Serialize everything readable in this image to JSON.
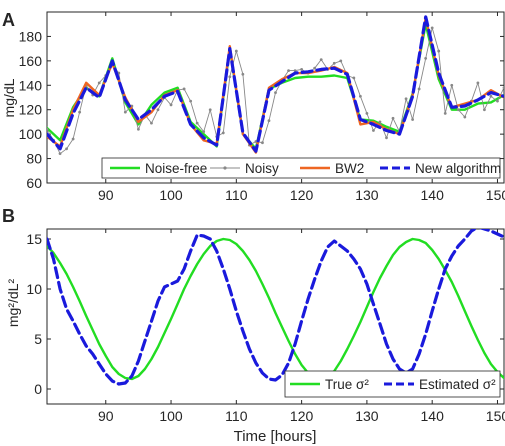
{
  "chart_data": [
    {
      "panel_label": "A",
      "type": "line",
      "title": "",
      "xlabel": "",
      "ylabel": "mg/dL",
      "xlim": [
        81,
        151
      ],
      "ylim": [
        60,
        200
      ],
      "xticks": [
        90,
        100,
        110,
        120,
        130,
        140,
        150
      ],
      "yticks": [
        60,
        80,
        100,
        120,
        140,
        160,
        180
      ],
      "legend_position": "bottom",
      "series": [
        {
          "name": "Noise-free",
          "color": "#22dd22",
          "style": "solid",
          "x": [
            81,
            83,
            85,
            87,
            89,
            91,
            93,
            95,
            97,
            99,
            101,
            103,
            105,
            107,
            109,
            111,
            113,
            115,
            117,
            119,
            121,
            123,
            125,
            127,
            129,
            131,
            133,
            135,
            137,
            139,
            141,
            143,
            145,
            147,
            149,
            151
          ],
          "y": [
            105,
            95,
            122,
            138,
            131,
            162,
            126,
            108,
            124,
            134,
            138,
            110,
            100,
            90,
            170,
            100,
            88,
            137,
            142,
            146,
            147,
            147,
            148,
            146,
            112,
            111,
            106,
            102,
            133,
            190,
            145,
            120,
            120,
            125,
            126,
            132
          ]
        },
        {
          "name": "Noisy",
          "color": "#888888",
          "style": "noisy",
          "x": [
            81,
            82,
            83,
            84,
            85,
            86,
            87,
            88,
            89,
            90,
            91,
            92,
            93,
            94,
            95,
            96,
            97,
            98,
            99,
            100,
            101,
            102,
            103,
            104,
            105,
            106,
            107,
            108,
            109,
            110,
            111,
            112,
            113,
            114,
            115,
            116,
            117,
            118,
            119,
            120,
            121,
            122,
            123,
            124,
            125,
            126,
            127,
            128,
            129,
            130,
            131,
            132,
            133,
            134,
            135,
            136,
            137,
            138,
            139,
            140,
            141,
            142,
            143,
            144,
            145,
            146,
            147,
            148,
            149,
            150,
            151
          ],
          "y": [
            104,
            95,
            84,
            88,
            96,
            118,
            140,
            132,
            142,
            148,
            157,
            150,
            118,
            123,
            104,
            116,
            109,
            120,
            130,
            124,
            136,
            137,
            127,
            109,
            102,
            120,
            98,
            101,
            147,
            168,
            149,
            91,
            94,
            93,
            111,
            134,
            144,
            152,
            152,
            153,
            150,
            154,
            161,
            153,
            158,
            160,
            148,
            146,
            131,
            117,
            103,
            110,
            97,
            113,
            102,
            129,
            112,
            137,
            162,
            187,
            168,
            117,
            140,
            120,
            114,
            127,
            142,
            120,
            131,
            127,
            138
          ]
        },
        {
          "name": "BW2",
          "color": "#ee6622",
          "style": "solid",
          "x": [
            81,
            83,
            85,
            87,
            89,
            91,
            93,
            95,
            97,
            99,
            101,
            103,
            105,
            107,
            109,
            111,
            113,
            115,
            117,
            119,
            121,
            123,
            125,
            127,
            129,
            131,
            133,
            135,
            137,
            139,
            141,
            143,
            145,
            147,
            149,
            151
          ],
          "y": [
            98,
            90,
            120,
            142,
            132,
            158,
            130,
            110,
            118,
            132,
            136,
            108,
            95,
            92,
            172,
            100,
            85,
            138,
            145,
            150,
            150,
            152,
            155,
            150,
            108,
            110,
            104,
            100,
            132,
            195,
            148,
            122,
            125,
            128,
            136,
            130
          ]
        },
        {
          "name": "New algorithm",
          "color": "#1a1adc",
          "style": "dashed",
          "x": [
            81,
            83,
            85,
            87,
            89,
            91,
            93,
            95,
            97,
            99,
            101,
            103,
            105,
            107,
            109,
            111,
            113,
            115,
            117,
            119,
            121,
            123,
            125,
            127,
            129,
            131,
            133,
            135,
            137,
            139,
            141,
            143,
            145,
            147,
            149,
            151
          ],
          "y": [
            100,
            88,
            117,
            138,
            130,
            160,
            128,
            112,
            120,
            131,
            135,
            108,
            97,
            91,
            170,
            101,
            86,
            136,
            143,
            150,
            151,
            153,
            154,
            149,
            112,
            108,
            103,
            100,
            131,
            196,
            150,
            122,
            123,
            128,
            134,
            131
          ]
        }
      ]
    },
    {
      "panel_label": "B",
      "type": "line",
      "title": "",
      "xlabel": "Time [hours]",
      "ylabel": "mg²/dL²",
      "xlim": [
        81,
        151
      ],
      "ylim": [
        -1.5,
        16
      ],
      "xticks": [
        90,
        100,
        110,
        120,
        130,
        140,
        150
      ],
      "yticks": [
        0,
        5,
        10,
        15
      ],
      "legend_position": "bottom-right",
      "series": [
        {
          "name": "True σ²",
          "color": "#22dd22",
          "style": "solid",
          "x": [
            81,
            82,
            83,
            84,
            85,
            86,
            87,
            88,
            89,
            90,
            91,
            92,
            93,
            94,
            95,
            96,
            97,
            98,
            99,
            100,
            101,
            102,
            103,
            104,
            105,
            106,
            107,
            108,
            109,
            110,
            111,
            112,
            113,
            114,
            115,
            116,
            117,
            118,
            119,
            120,
            121,
            122,
            123,
            124,
            125,
            126,
            127,
            128,
            129,
            130,
            131,
            132,
            133,
            134,
            135,
            136,
            137,
            138,
            139,
            140,
            141,
            142,
            143,
            144,
            145,
            146,
            147,
            148,
            149,
            150,
            151
          ],
          "y": [
            14.3,
            13.6,
            12.6,
            11.5,
            10.2,
            8.8,
            7.3,
            5.9,
            4.5,
            3.3,
            2.2,
            1.5,
            1.1,
            1.0,
            1.3,
            2.0,
            3.0,
            4.2,
            5.6,
            7.0,
            8.5,
            10.0,
            11.3,
            12.5,
            13.5,
            14.3,
            14.8,
            15.0,
            14.9,
            14.5,
            13.8,
            12.9,
            11.8,
            10.5,
            9.1,
            7.6,
            6.2,
            4.8,
            3.5,
            2.4,
            1.6,
            1.1,
            1.0,
            1.2,
            1.8,
            2.8,
            4.0,
            5.3,
            6.7,
            8.2,
            9.7,
            11.1,
            12.3,
            13.4,
            14.2,
            14.7,
            15.0,
            14.9,
            14.6,
            13.9,
            13.0,
            11.9,
            10.7,
            9.3,
            7.8,
            6.3,
            4.9,
            3.6,
            2.5,
            1.7,
            1.1
          ]
        },
        {
          "name": "Estimated σ²",
          "color": "#1a1adc",
          "style": "dashed",
          "x": [
            81,
            82,
            83,
            84,
            85,
            86,
            87,
            88,
            89,
            90,
            91,
            92,
            93,
            94,
            95,
            96,
            97,
            98,
            99,
            100,
            101,
            102,
            103,
            104,
            105,
            106,
            107,
            108,
            109,
            110,
            111,
            112,
            113,
            114,
            115,
            116,
            117,
            118,
            119,
            120,
            121,
            122,
            123,
            124,
            125,
            126,
            127,
            128,
            129,
            130,
            131,
            132,
            133,
            134,
            135,
            136,
            137,
            138,
            139,
            140,
            141,
            142,
            143,
            144,
            145,
            146,
            147,
            148,
            149,
            150,
            151
          ],
          "y": [
            15.0,
            13.0,
            10.0,
            8.0,
            6.8,
            5.5,
            4.3,
            3.5,
            2.5,
            1.5,
            0.8,
            0.5,
            0.6,
            1.3,
            2.8,
            4.8,
            6.8,
            8.8,
            10.2,
            10.5,
            10.8,
            12.0,
            13.8,
            15.4,
            15.3,
            15.0,
            13.8,
            12.0,
            10.0,
            7.8,
            5.8,
            4.0,
            2.6,
            1.6,
            1.0,
            0.9,
            1.4,
            2.6,
            4.5,
            6.8,
            9.0,
            11.0,
            12.8,
            14.2,
            14.8,
            14.3,
            13.8,
            13.0,
            12.0,
            10.5,
            8.5,
            6.5,
            4.5,
            3.0,
            2.0,
            1.6,
            2.0,
            3.5,
            5.5,
            7.8,
            10.0,
            12.0,
            13.3,
            14.3,
            15.0,
            15.8,
            16.2,
            16.0,
            15.8,
            15.5,
            15.2
          ]
        }
      ]
    }
  ]
}
